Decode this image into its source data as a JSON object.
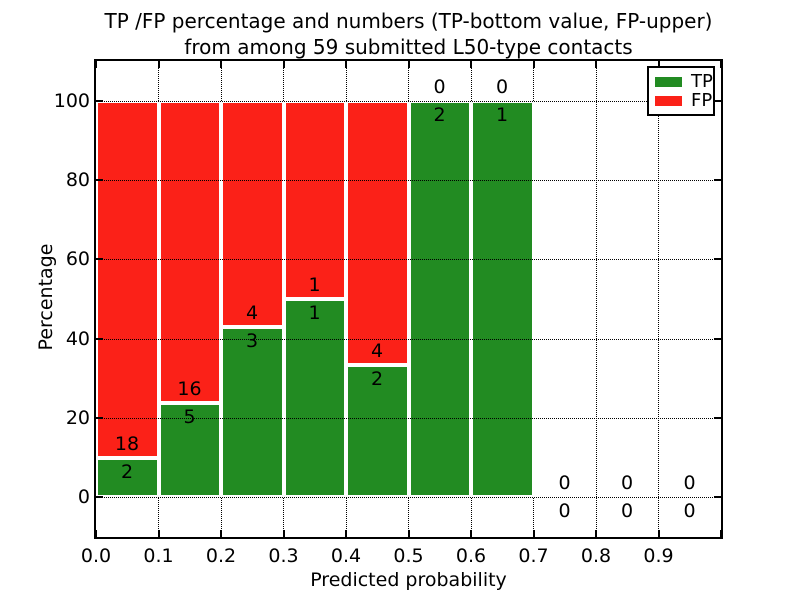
{
  "chart_data": {
    "type": "bar",
    "stacked": true,
    "title_lines": [
      "TP /FP percentage and numbers (TP-bottom value, FP-upper)",
      "from among 59 submitted L50-type contacts"
    ],
    "xlabel": "Predicted probability",
    "ylabel": "Percentage",
    "xlim": [
      0.0,
      1.0
    ],
    "ylim": [
      -10,
      110
    ],
    "x_ticks": [
      "0.0",
      "0.1",
      "0.2",
      "0.3",
      "0.4",
      "0.5",
      "0.6",
      "0.7",
      "0.8",
      "0.9"
    ],
    "y_ticks": [
      0,
      20,
      40,
      60,
      80,
      100
    ],
    "grid_style": "dotted",
    "legend_position": "upper right",
    "colors": {
      "tp": "#228b22",
      "fp": "#fb2118",
      "axis": "#000000",
      "background": "#ffffff"
    },
    "legend": [
      {
        "name": "TP",
        "color_key": "tp"
      },
      {
        "name": "FP",
        "color_key": "fp"
      }
    ],
    "bins": [
      {
        "range": "0.0-0.1",
        "tp_count": 2,
        "fp_count": 18,
        "tp_pct": 10.0,
        "fp_pct": 90.0
      },
      {
        "range": "0.1-0.2",
        "tp_count": 5,
        "fp_count": 16,
        "tp_pct": 23.8,
        "fp_pct": 76.2
      },
      {
        "range": "0.2-0.3",
        "tp_count": 3,
        "fp_count": 4,
        "tp_pct": 42.9,
        "fp_pct": 57.1
      },
      {
        "range": "0.3-0.4",
        "tp_count": 1,
        "fp_count": 1,
        "tp_pct": 50.0,
        "fp_pct": 50.0
      },
      {
        "range": "0.4-0.5",
        "tp_count": 2,
        "fp_count": 4,
        "tp_pct": 33.3,
        "fp_pct": 66.7
      },
      {
        "range": "0.5-0.6",
        "tp_count": 2,
        "fp_count": 0,
        "tp_pct": 100.0,
        "fp_pct": 0.0
      },
      {
        "range": "0.6-0.7",
        "tp_count": 1,
        "fp_count": 0,
        "tp_pct": 100.0,
        "fp_pct": 0.0
      },
      {
        "range": "0.7-0.8",
        "tp_count": 0,
        "fp_count": 0,
        "tp_pct": 0.0,
        "fp_pct": 0.0
      },
      {
        "range": "0.8-0.9",
        "tp_count": 0,
        "fp_count": 0,
        "tp_pct": 0.0,
        "fp_pct": 0.0
      },
      {
        "range": "0.9-1.0",
        "tp_count": 0,
        "fp_count": 0,
        "tp_pct": 0.0,
        "fp_pct": 0.0
      }
    ]
  }
}
